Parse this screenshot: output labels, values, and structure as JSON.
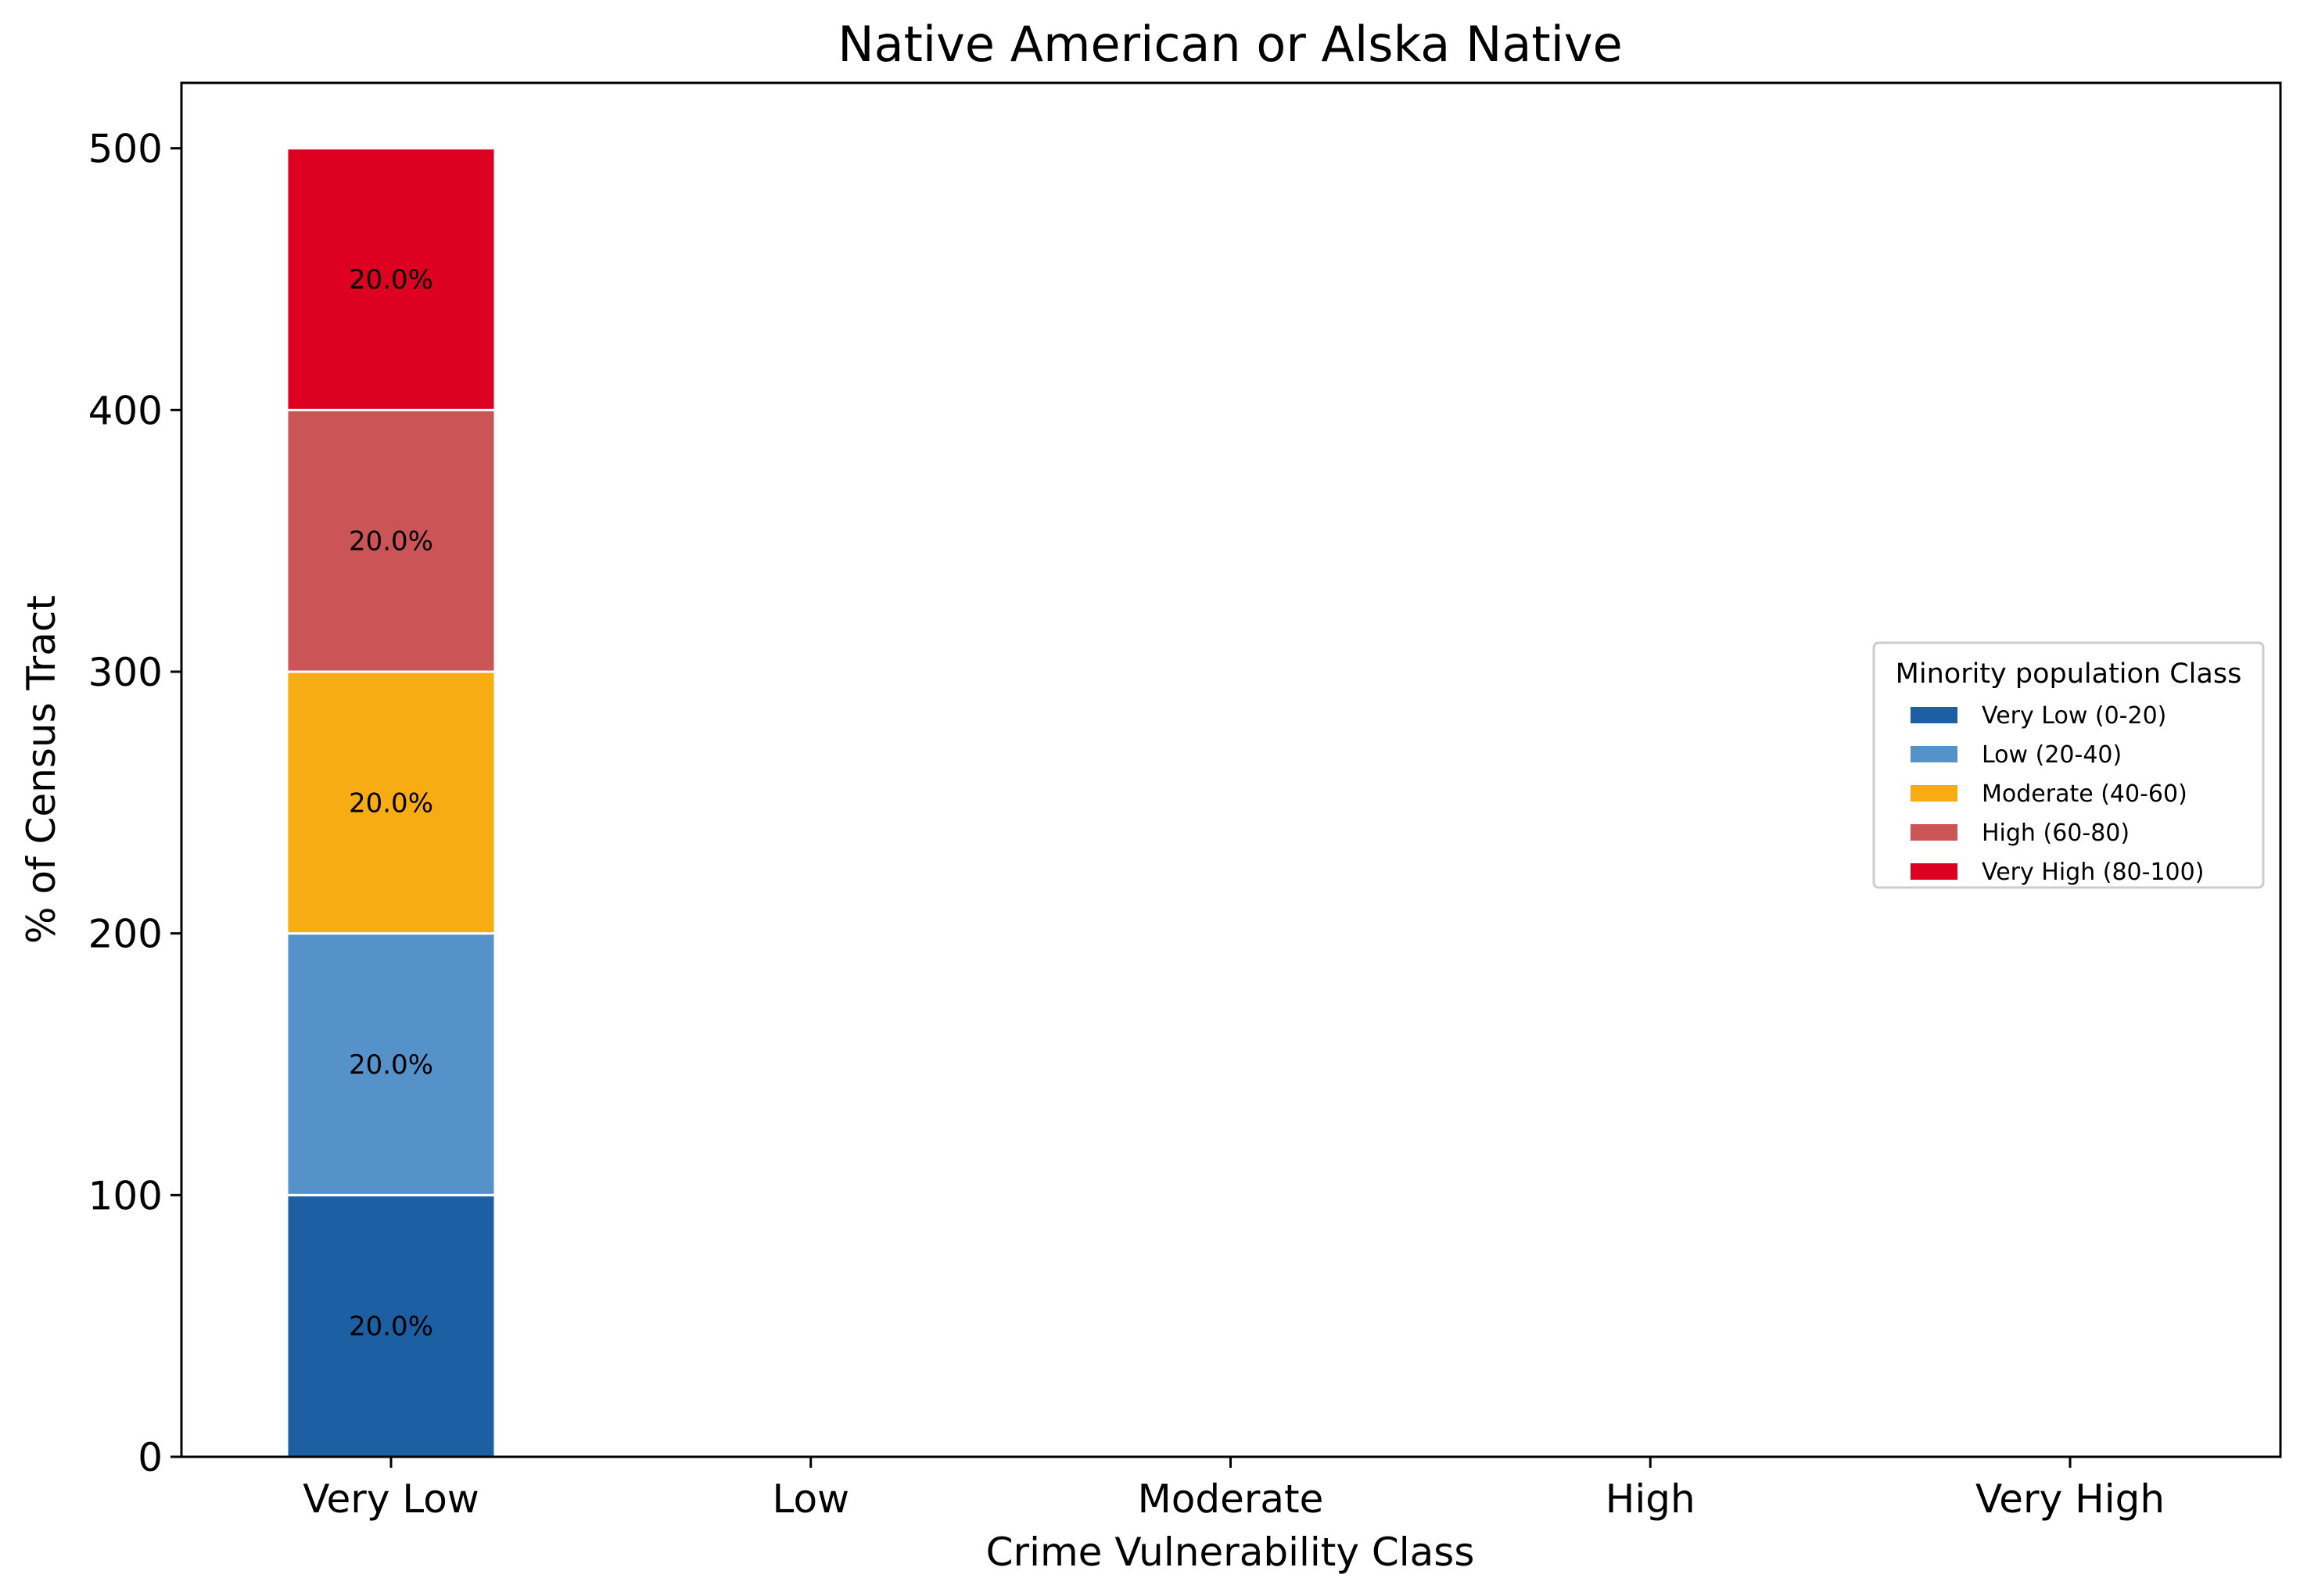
{
  "chart_data": {
    "type": "bar",
    "stacked": true,
    "title": "Native American or Alska Native",
    "xlabel": "Crime Vulnerability Class",
    "ylabel": "% of Census Tract",
    "categories": [
      "Very Low",
      "Low",
      "Moderate",
      "High",
      "Very High"
    ],
    "ylim": [
      0,
      525
    ],
    "yticks": [
      0,
      100,
      200,
      300,
      400,
      500
    ],
    "grid": false,
    "legend": {
      "title": "Minority population Class",
      "placement": "center-right"
    },
    "series": [
      {
        "name": "Very Low (0-20)",
        "color": "#1c5fa2",
        "values": [
          100,
          0,
          0,
          0,
          0
        ],
        "labels": [
          "20.0%",
          "",
          "",
          "",
          ""
        ]
      },
      {
        "name": "Low (20-40)",
        "color": "#5592ca",
        "values": [
          100,
          0,
          0,
          0,
          0
        ],
        "labels": [
          "20.0%",
          "",
          "",
          "",
          ""
        ]
      },
      {
        "name": "Moderate (40-60)",
        "color": "#f8ac14",
        "values": [
          100,
          0,
          0,
          0,
          0
        ],
        "labels": [
          "20.0%",
          "",
          "",
          "",
          ""
        ]
      },
      {
        "name": "High (60-80)",
        "color": "#cb5457",
        "values": [
          100,
          0,
          0,
          0,
          0
        ],
        "labels": [
          "20.0%",
          "",
          "",
          "",
          ""
        ]
      },
      {
        "name": "Very High (80-100)",
        "color": "#de0021",
        "values": [
          100,
          0,
          0,
          0,
          0
        ],
        "labels": [
          "20.0%",
          "",
          "",
          "",
          ""
        ]
      }
    ]
  }
}
